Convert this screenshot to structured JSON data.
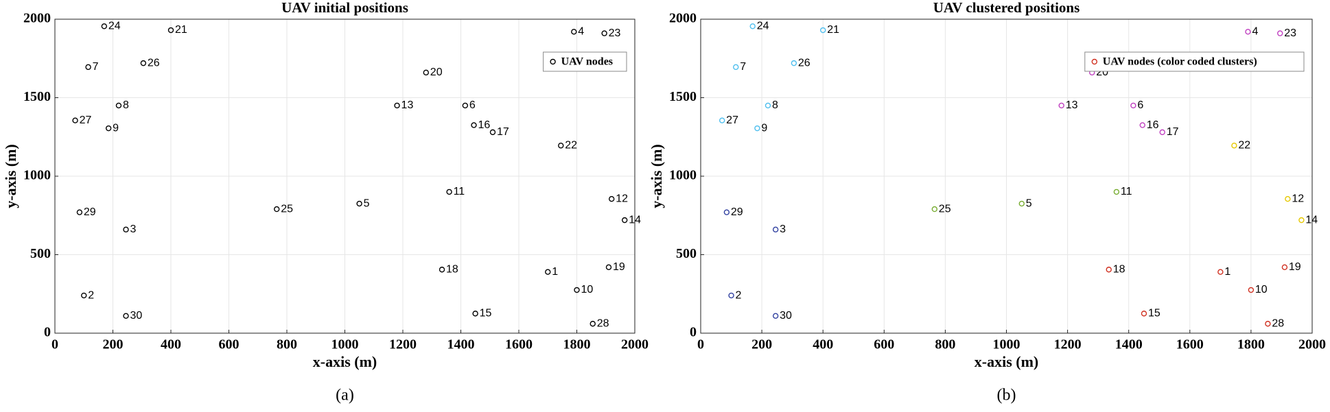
{
  "chart_data": [
    {
      "type": "scatter",
      "title": "UAV initial positions",
      "x_label": "x-axis (m)",
      "y_label": "y-axis (m)",
      "caption": "(a)",
      "xlim": [
        0,
        2000
      ],
      "ylim": [
        0,
        2000
      ],
      "xticks": [
        0,
        200,
        400,
        600,
        800,
        1000,
        1200,
        1400,
        1600,
        1800,
        2000
      ],
      "yticks": [
        0,
        500,
        1000,
        1500,
        2000
      ],
      "grid": true,
      "legend": "upper right",
      "series": [
        {
          "name": "UAV nodes",
          "color": "#000000",
          "x": [
            1700,
            100,
            245,
            1790,
            1050,
            1415,
            115,
            220,
            185,
            1800,
            1360,
            1920,
            1180,
            1965,
            1450,
            1445,
            1510,
            1335,
            1910,
            1280,
            400,
            1745,
            1895,
            170,
            765,
            305,
            70,
            1855,
            85,
            245
          ],
          "values": [
            390,
            240,
            660,
            1920,
            825,
            1450,
            1695,
            1450,
            1305,
            275,
            900,
            855,
            1450,
            720,
            125,
            1325,
            1280,
            405,
            420,
            1660,
            1930,
            1195,
            1910,
            1955,
            790,
            1720,
            1355,
            60,
            770,
            110
          ],
          "point_labels": [
            "1",
            "2",
            "3",
            "4",
            "5",
            "6",
            "7",
            "8",
            "9",
            "10",
            "11",
            "12",
            "13",
            "14",
            "15",
            "16",
            "17",
            "18",
            "19",
            "20",
            "21",
            "22",
            "23",
            "24",
            "25",
            "26",
            "27",
            "28",
            "29",
            "30"
          ]
        }
      ]
    },
    {
      "type": "scatter",
      "title": "UAV clustered positions",
      "x_label": "x-axis (m)",
      "y_label": "y-axis (m)",
      "caption": "(b)",
      "xlim": [
        0,
        2000
      ],
      "ylim": [
        0,
        2000
      ],
      "xticks": [
        0,
        200,
        400,
        600,
        800,
        1000,
        1200,
        1400,
        1600,
        1800,
        2000
      ],
      "yticks": [
        0,
        500,
        1000,
        1500,
        2000
      ],
      "grid": true,
      "legend": "upper right",
      "series": [
        {
          "name": "UAV nodes (color coded clusters)",
          "color": "#d03020",
          "x": [
            1700,
            100,
            245,
            1790,
            1050,
            1415,
            115,
            220,
            185,
            1800,
            1360,
            1920,
            1180,
            1965,
            1450,
            1445,
            1510,
            1335,
            1910,
            1280,
            400,
            1745,
            1895,
            170,
            765,
            305,
            70,
            1855,
            85,
            245
          ],
          "values": [
            390,
            240,
            660,
            1920,
            825,
            1450,
            1695,
            1450,
            1305,
            275,
            900,
            855,
            1450,
            720,
            125,
            1325,
            1280,
            405,
            420,
            1660,
            1930,
            1195,
            1910,
            1955,
            790,
            1720,
            1355,
            60,
            770,
            110
          ],
          "point_labels": [
            "1",
            "2",
            "3",
            "4",
            "5",
            "6",
            "7",
            "8",
            "9",
            "10",
            "11",
            "12",
            "13",
            "14",
            "15",
            "16",
            "17",
            "18",
            "19",
            "20",
            "21",
            "22",
            "23",
            "24",
            "25",
            "26",
            "27",
            "28",
            "29",
            "30"
          ],
          "point_colors": [
            "#d03020",
            "#3040a0",
            "#3040a0",
            "#c040c0",
            "#77ac30",
            "#c040c0",
            "#4dbeee",
            "#4dbeee",
            "#4dbeee",
            "#d03020",
            "#77ac30",
            "#e6c800",
            "#c040c0",
            "#e6c800",
            "#d03020",
            "#c040c0",
            "#c040c0",
            "#d03020",
            "#d03020",
            "#c040c0",
            "#4dbeee",
            "#e6c800",
            "#c040c0",
            "#4dbeee",
            "#77ac30",
            "#4dbeee",
            "#4dbeee",
            "#d03020",
            "#3040a0",
            "#3040a0"
          ]
        }
      ]
    }
  ]
}
